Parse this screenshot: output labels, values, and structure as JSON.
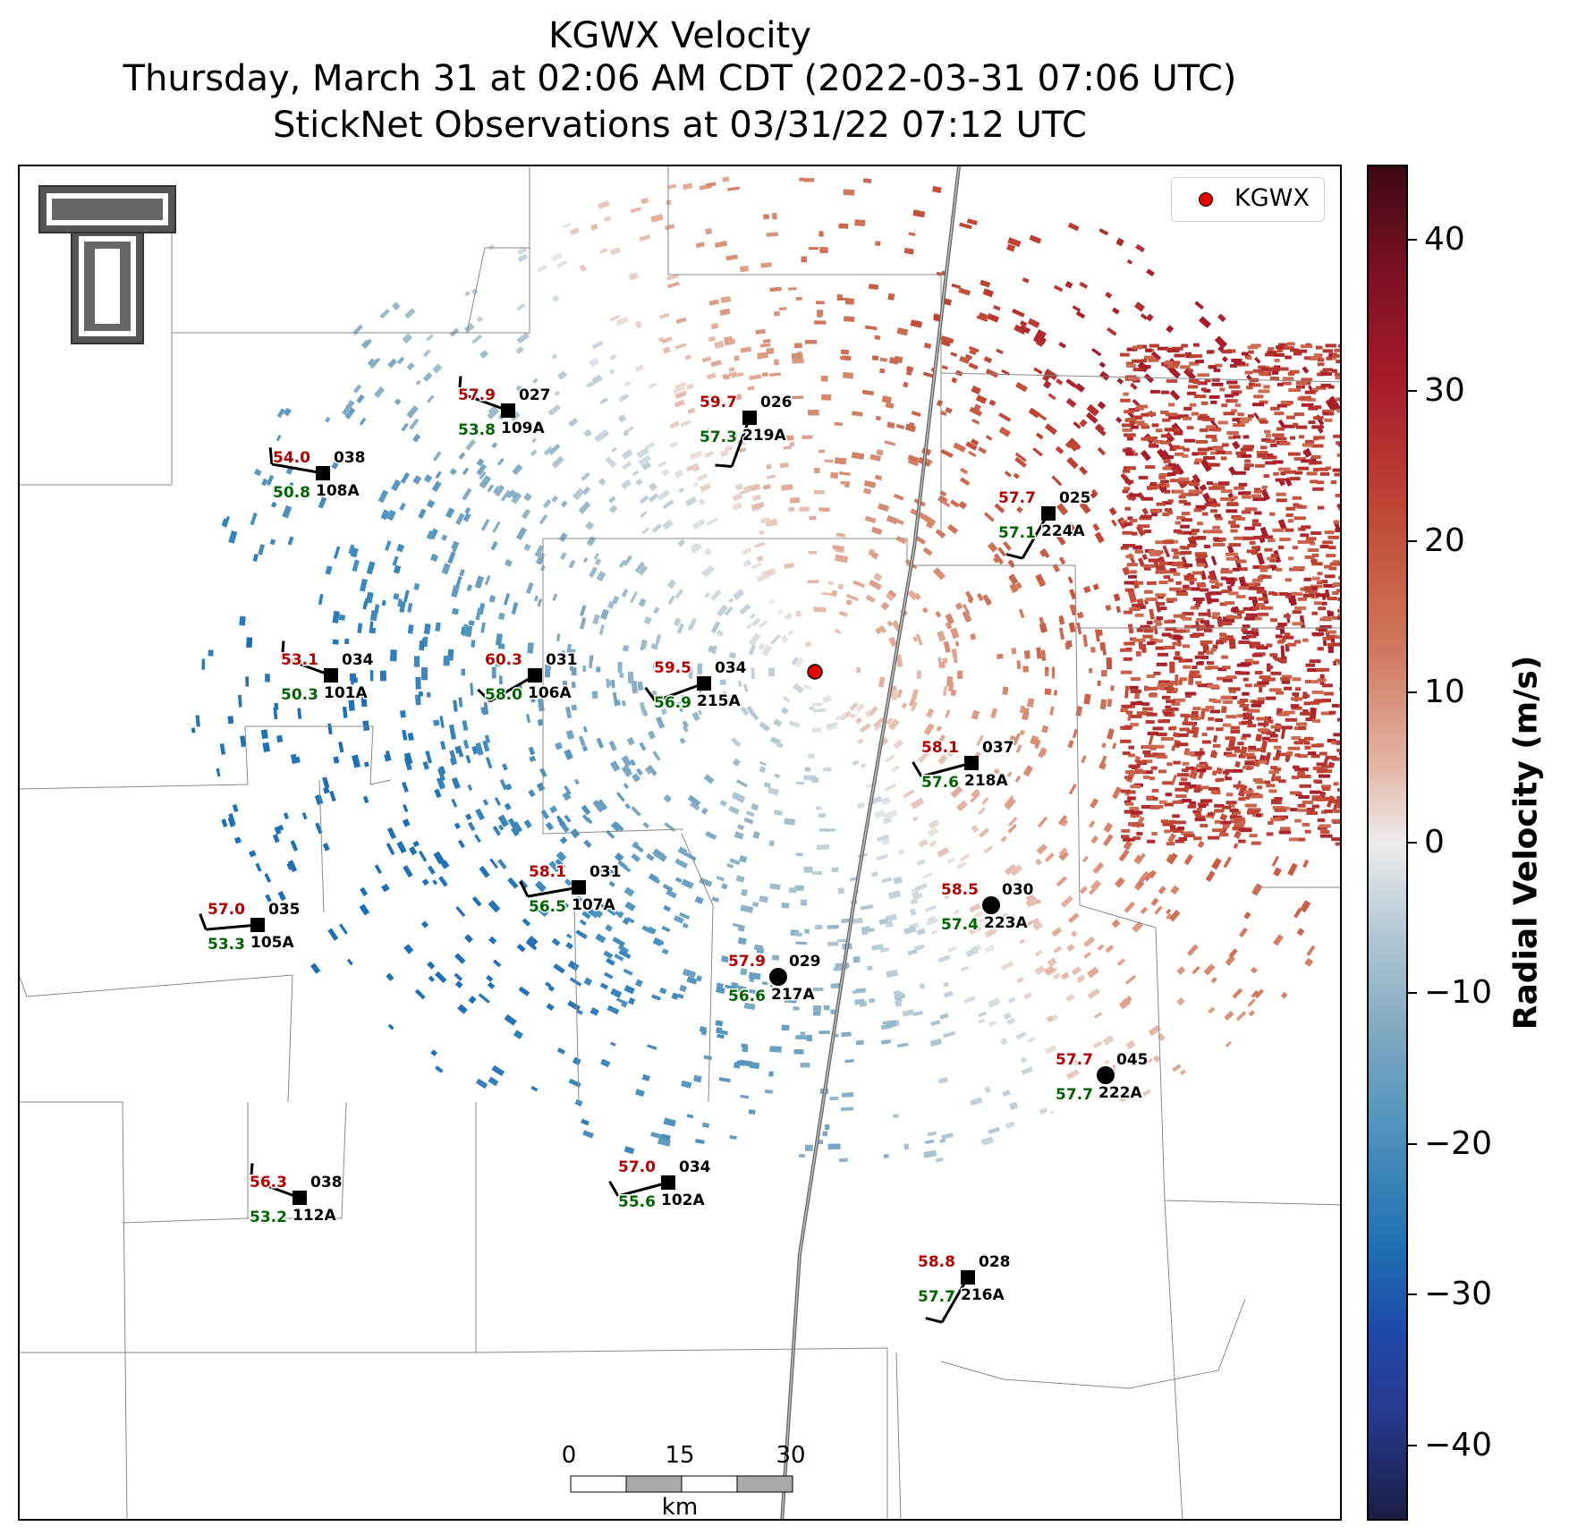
{
  "header": {
    "title_line1": "KGWX Velocity",
    "title_line2": "Thursday, March 31 at 02:06 AM CDT (2022-03-31 07:06 UTC)",
    "title_line3": "StickNet Observations at 03/31/22 07:12 UTC"
  },
  "legend": {
    "label": "KGWX",
    "marker_color": "#e00000"
  },
  "colorbar": {
    "title": "Radial Velocity (m/s)",
    "ticks": [
      "40",
      "30",
      "20",
      "10",
      "0",
      "−10",
      "−20",
      "−30",
      "−40"
    ],
    "range": [
      -45,
      45
    ]
  },
  "scale_bar": {
    "labels": [
      "0",
      "15",
      "30"
    ],
    "unit": "km"
  },
  "colors": {
    "temperature": "#b30000",
    "dewpoint": "#006400",
    "inbound": "#4a8fbc",
    "outbound": "#c14a36"
  },
  "stations": [
    {
      "id": "108A",
      "num": "038",
      "temp": "54.0",
      "dew": "50.8",
      "marker": "square"
    },
    {
      "id": "109A",
      "num": "027",
      "temp": "57.9",
      "dew": "53.8",
      "marker": "square"
    },
    {
      "id": "219A",
      "num": "026",
      "temp": "59.7",
      "dew": "57.3",
      "marker": "square"
    },
    {
      "id": "224A",
      "num": "025",
      "temp": "57.7",
      "dew": "57.1",
      "marker": "square"
    },
    {
      "id": "101A",
      "num": "034",
      "temp": "53.1",
      "dew": "50.3",
      "marker": "square"
    },
    {
      "id": "106A",
      "num": "031",
      "temp": "60.3",
      "dew": "58.0",
      "marker": "square"
    },
    {
      "id": "215A",
      "num": "034",
      "temp": "59.5",
      "dew": "56.9",
      "marker": "square"
    },
    {
      "id": "218A",
      "num": "037",
      "temp": "58.1",
      "dew": "57.6",
      "marker": "square"
    },
    {
      "id": "107A",
      "num": "031",
      "temp": "58.1",
      "dew": "56.5",
      "marker": "square"
    },
    {
      "id": "105A",
      "num": "035",
      "temp": "57.0",
      "dew": "53.3",
      "marker": "square"
    },
    {
      "id": "223A",
      "num": "030",
      "temp": "58.5",
      "dew": "57.4",
      "marker": "circle"
    },
    {
      "id": "217A",
      "num": "029",
      "temp": "57.9",
      "dew": "56.6",
      "marker": "circle"
    },
    {
      "id": "222A",
      "num": "045",
      "temp": "57.7",
      "dew": "57.7",
      "marker": "circle"
    },
    {
      "id": "112A",
      "num": "038",
      "temp": "56.3",
      "dew": "53.2",
      "marker": "square"
    },
    {
      "id": "102A",
      "num": "034",
      "temp": "57.0",
      "dew": "55.6",
      "marker": "square"
    },
    {
      "id": "216A",
      "num": "028",
      "temp": "58.8",
      "dew": "57.7",
      "marker": "square"
    }
  ]
}
